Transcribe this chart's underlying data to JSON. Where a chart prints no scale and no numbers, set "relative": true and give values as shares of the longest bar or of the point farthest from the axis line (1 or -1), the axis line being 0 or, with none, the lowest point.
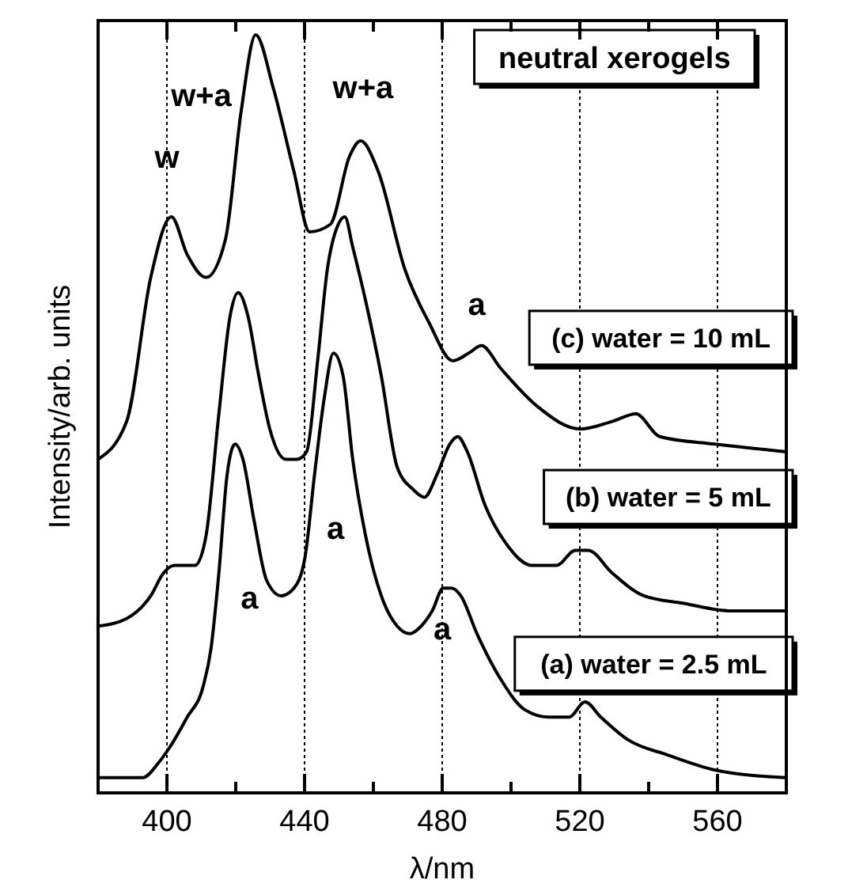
{
  "chart_data": {
    "type": "line",
    "title": "neutral xerogels",
    "xlabel": "λ/nm",
    "ylabel": "Intensity/arb. units",
    "relative": true,
    "grid": "x",
    "xlim": [
      380,
      580
    ],
    "xticks": [
      400,
      {
        "value": 420,
        "label": null
      },
      440,
      {
        "value": 460,
        "label": null
      },
      480,
      {
        "value": 500,
        "label": null
      },
      520,
      {
        "value": 540,
        "label": null
      },
      560
    ],
    "annotations": [
      "w",
      "w+a",
      "w+a",
      "a",
      "a",
      "a",
      "a"
    ],
    "series": [
      {
        "name": "(c) water = 10 mL",
        "color": "#000000",
        "x": [
          380,
          388.3,
          395.3,
          401.3,
          405.9,
          411.4,
          417,
          421.6,
          425.8,
          430.9,
          436.9,
          441.5,
          447.5,
          453.1,
          456.3,
          461.4,
          469.2,
          476.2,
          483.1,
          487.7,
          491.4,
          497,
          507.6,
          520.1,
          529.4,
          536.3,
          543.2,
          559.4,
          580
        ],
        "values": [
          0.44,
          0.49,
          0.68,
          0.76,
          0.71,
          0.68,
          0.73,
          0.9,
          1,
          0.93,
          0.82,
          0.74,
          0.75,
          0.84,
          0.86,
          0.82,
          0.69,
          0.62,
          0.57,
          0.58,
          0.59,
          0.56,
          0.51,
          0.48,
          0.49,
          0.5,
          0.47,
          0.46,
          0.45
        ]
      },
      {
        "name": "(b) water = 5 mL",
        "color": "#000000",
        "x": [
          380,
          388.3,
          395.3,
          399,
          402.2,
          408.2,
          411.4,
          415.1,
          418.4,
          420.7,
          423.5,
          426.7,
          429.9,
          434.6,
          437.8,
          440.6,
          443.8,
          446.6,
          449.8,
          451.7,
          454,
          457.7,
          462.3,
          466.9,
          471.6,
          474.8,
          478.5,
          482.2,
          484.5,
          487.3,
          492.4,
          498.4,
          506.2,
          513.2,
          518.7,
          522.4,
          529.4,
          538.6,
          550.2,
          564,
          580
        ],
        "values": [
          0.22,
          0.23,
          0.26,
          0.29,
          0.3,
          0.3,
          0.34,
          0.5,
          0.63,
          0.66,
          0.63,
          0.55,
          0.48,
          0.44,
          0.44,
          0.45,
          0.57,
          0.69,
          0.75,
          0.76,
          0.72,
          0.65,
          0.55,
          0.43,
          0.4,
          0.39,
          0.42,
          0.46,
          0.47,
          0.45,
          0.38,
          0.33,
          0.3,
          0.3,
          0.32,
          0.32,
          0.29,
          0.26,
          0.25,
          0.24,
          0.24
        ]
      },
      {
        "name": "(a) water = 2.5 mL",
        "color": "#000000",
        "x": [
          380,
          392.9,
          397.6,
          400.8,
          405.9,
          410.5,
          412.8,
          415.1,
          417.5,
          419.8,
          422.1,
          425.3,
          429,
          433.2,
          436.9,
          440.1,
          442.9,
          445.7,
          448.4,
          451.2,
          454,
          457.7,
          462.3,
          466.9,
          470.6,
          473.9,
          477.1,
          480.3,
          482.7,
          485.4,
          490.1,
          497,
          503.9,
          510.9,
          516.9,
          521.5,
          526.1,
          534,
          545.5,
          559.4,
          580
        ],
        "values": [
          0.02,
          0.02,
          0.04,
          0.06,
          0.1,
          0.14,
          0.19,
          0.29,
          0.42,
          0.46,
          0.44,
          0.36,
          0.28,
          0.26,
          0.27,
          0.31,
          0.42,
          0.52,
          0.58,
          0.55,
          0.44,
          0.34,
          0.26,
          0.22,
          0.21,
          0.22,
          0.24,
          0.27,
          0.27,
          0.26,
          0.21,
          0.15,
          0.11,
          0.1,
          0.1,
          0.12,
          0.1,
          0.07,
          0.05,
          0.03,
          0.02
        ]
      }
    ]
  }
}
